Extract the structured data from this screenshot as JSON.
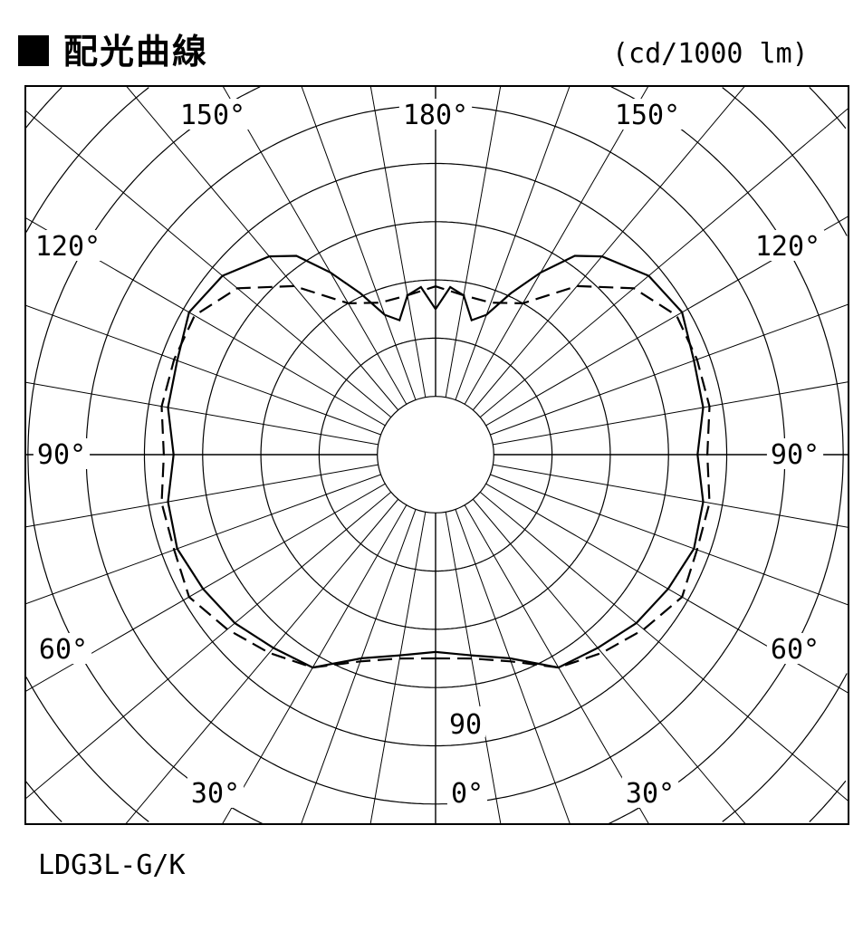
{
  "title": "配光曲線",
  "unit": "(cd/1000 lm)",
  "model": "LDG3L-G/K",
  "chart_data": {
    "type": "polar",
    "angle_labels": [
      {
        "text": "180°",
        "angle": 180,
        "side": "center"
      },
      {
        "text": "150°",
        "angle": 150,
        "side": "left"
      },
      {
        "text": "150°",
        "angle": 150,
        "side": "right"
      },
      {
        "text": "120°",
        "angle": 120,
        "side": "left"
      },
      {
        "text": "120°",
        "angle": 120,
        "side": "right"
      },
      {
        "text": "90°",
        "angle": 90,
        "side": "left"
      },
      {
        "text": "90°",
        "angle": 90,
        "side": "right"
      },
      {
        "text": "60°",
        "angle": 60,
        "side": "left"
      },
      {
        "text": "60°",
        "angle": 60,
        "side": "right"
      },
      {
        "text": "30°",
        "angle": 30,
        "side": "left"
      },
      {
        "text": "30°",
        "angle": 30,
        "side": "right"
      },
      {
        "text": "0°",
        "angle": 0,
        "side": "center"
      }
    ],
    "radial_label": "90",
    "ring_step": 18,
    "spoke_step_deg": 10,
    "symmetric": true,
    "series": [
      {
        "style": "solid",
        "angles": [
          0,
          10,
          20,
          30,
          40,
          50,
          60,
          70,
          80,
          90,
          100,
          110,
          120,
          130,
          140,
          145,
          150,
          155,
          160,
          165,
          170,
          175,
          180
        ],
        "values": [
          61,
          63,
          67,
          76,
          78,
          81,
          83,
          85,
          84,
          81,
          84,
          85,
          88,
          86,
          80,
          75,
          65,
          55,
          46,
          43,
          50,
          52,
          45
        ]
      },
      {
        "style": "dashed",
        "angles": [
          0,
          10,
          20,
          30,
          40,
          50,
          60,
          70,
          80,
          90,
          100,
          110,
          120,
          130,
          140,
          150,
          160,
          170,
          180
        ],
        "values": [
          63,
          64,
          68,
          76,
          80,
          84,
          88,
          86,
          86,
          84,
          86,
          86,
          86,
          80,
          68,
          54,
          50,
          50,
          52
        ]
      }
    ]
  }
}
